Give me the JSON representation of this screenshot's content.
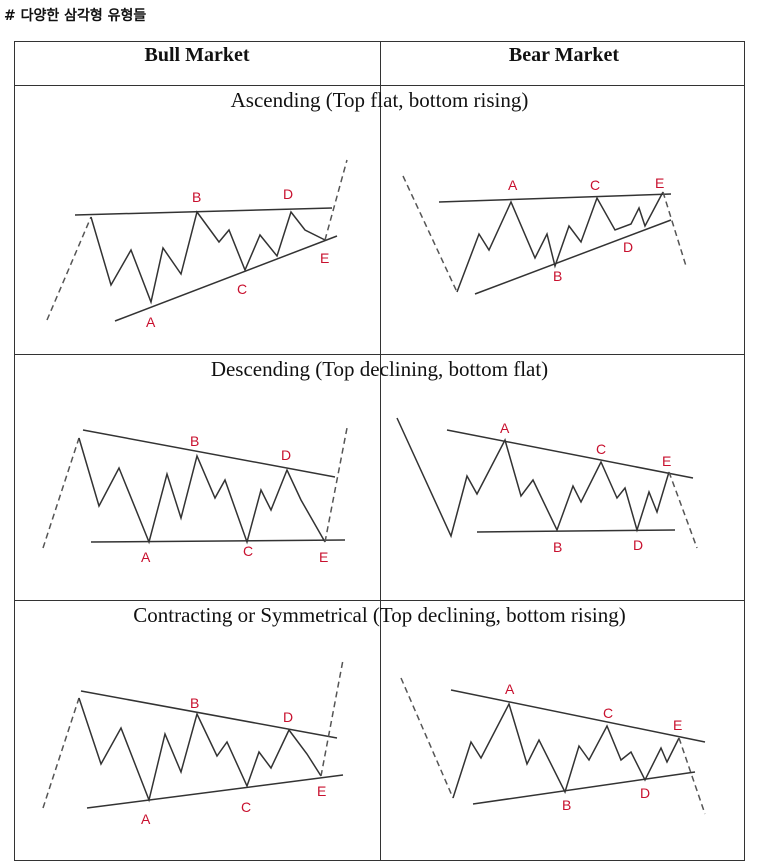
{
  "heading": "# 다양한 삼각형 유형들",
  "columns": [
    "Bull Market",
    "Bear Market"
  ],
  "rows": [
    {
      "title": "Ascending (Top flat, bottom rising)",
      "panels": [
        {
          "labels": [
            "A",
            "B",
            "C",
            "D",
            "E"
          ]
        },
        {
          "labels": [
            "A",
            "B",
            "C",
            "D",
            "E"
          ]
        }
      ]
    },
    {
      "title": "Descending (Top declining, bottom flat)",
      "panels": [
        {
          "labels": [
            "A",
            "B",
            "C",
            "D",
            "E"
          ]
        },
        {
          "labels": [
            "A",
            "B",
            "C",
            "D",
            "E"
          ]
        }
      ]
    },
    {
      "title": "Contracting or Symmetrical (Top declining, bottom rising)",
      "panels": [
        {
          "labels": [
            "A",
            "B",
            "C",
            "D",
            "E"
          ]
        },
        {
          "labels": [
            "A",
            "B",
            "C",
            "D",
            "E"
          ]
        }
      ]
    }
  ],
  "colors": {
    "label": "#c8102e",
    "line": "#333333",
    "dashed": "#555555"
  }
}
